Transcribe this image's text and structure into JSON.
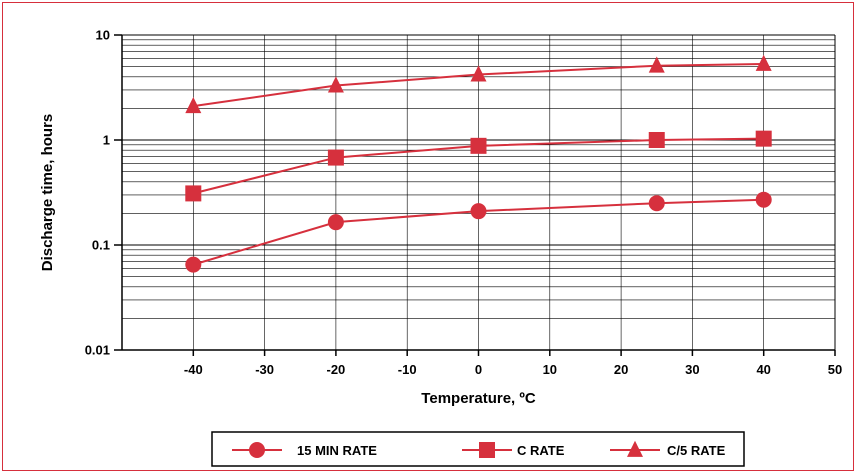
{
  "chart_data": {
    "type": "line",
    "xlabel": "Temperature, ºC",
    "ylabel": "Discharge time, hours",
    "x_ticks": [
      "-40",
      "-30",
      "-20",
      "-10",
      "0",
      "10",
      "20",
      "30",
      "40",
      "50"
    ],
    "y_ticks": [
      "0.01",
      "0.1",
      "1",
      "10"
    ],
    "xlim": [
      -50,
      50
    ],
    "ylim": [
      0.01,
      10
    ],
    "y_scale": "log",
    "grid": true,
    "legend_position": "bottom",
    "series": [
      {
        "name": "15 MIN RATE",
        "marker": "circle",
        "x": [
          -40,
          -20,
          0,
          25,
          40
        ],
        "y": [
          0.065,
          0.165,
          0.21,
          0.25,
          0.27
        ]
      },
      {
        "name": "C RATE",
        "marker": "square",
        "x": [
          -40,
          -20,
          0,
          25,
          40
        ],
        "y": [
          0.31,
          0.68,
          0.88,
          1.0,
          1.03
        ]
      },
      {
        "name": "C/5 RATE",
        "marker": "triangle",
        "x": [
          -40,
          -20,
          0,
          25,
          40
        ],
        "y": [
          2.1,
          3.3,
          4.2,
          5.1,
          5.3
        ]
      }
    ]
  },
  "colors": {
    "series": "#d6303d",
    "frame": "#d62f3c",
    "grid": "#000000"
  }
}
